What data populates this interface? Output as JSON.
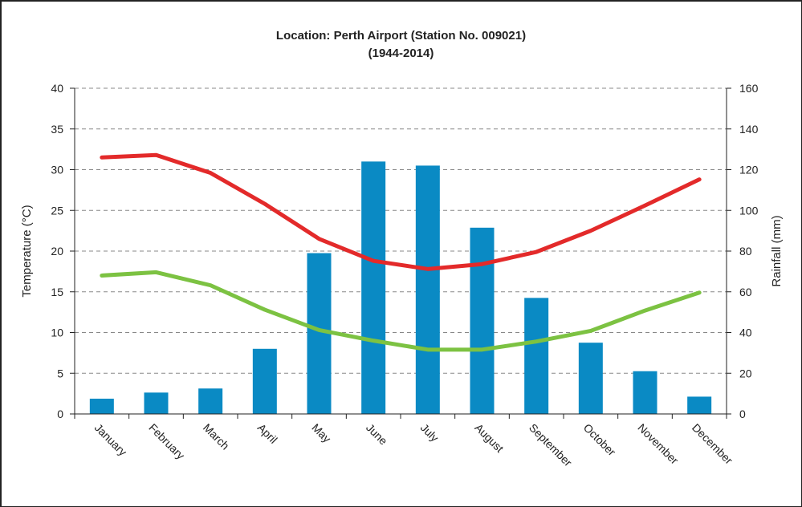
{
  "chart_data": {
    "type": "bar+line",
    "title": "Location: Perth Airport (Station No. 009021)",
    "subtitle": "(1944-2014)",
    "categories": [
      "January",
      "February",
      "March",
      "April",
      "May",
      "June",
      "July",
      "August",
      "September",
      "October",
      "November",
      "December"
    ],
    "y_left": {
      "label": "Temperature (°C)",
      "range": [
        0,
        40
      ],
      "ticks": [
        0,
        5,
        10,
        15,
        20,
        25,
        30,
        35,
        40
      ]
    },
    "y_right": {
      "label": "Rainfall (mm)",
      "range": [
        0,
        160
      ],
      "ticks": [
        0,
        20,
        40,
        60,
        80,
        100,
        120,
        140,
        160
      ]
    },
    "grid": "horizontal dashed",
    "series": [
      {
        "kind": "bar",
        "axis": "right",
        "color": "#0a8ac4",
        "values": [
          7.5,
          10.5,
          12.5,
          32,
          79,
          124,
          122,
          91.5,
          57,
          35,
          21,
          8.5
        ]
      },
      {
        "kind": "line",
        "axis": "left",
        "color": "#e32a2a",
        "values": [
          31.5,
          31.8,
          29.6,
          25.8,
          21.5,
          18.8,
          17.8,
          18.4,
          19.9,
          22.5,
          25.6,
          28.8
        ]
      },
      {
        "kind": "line",
        "axis": "left",
        "color": "#7cc242",
        "values": [
          17.0,
          17.4,
          15.8,
          12.8,
          10.3,
          9.0,
          7.9,
          7.9,
          8.9,
          10.2,
          12.7,
          14.9
        ]
      }
    ]
  }
}
